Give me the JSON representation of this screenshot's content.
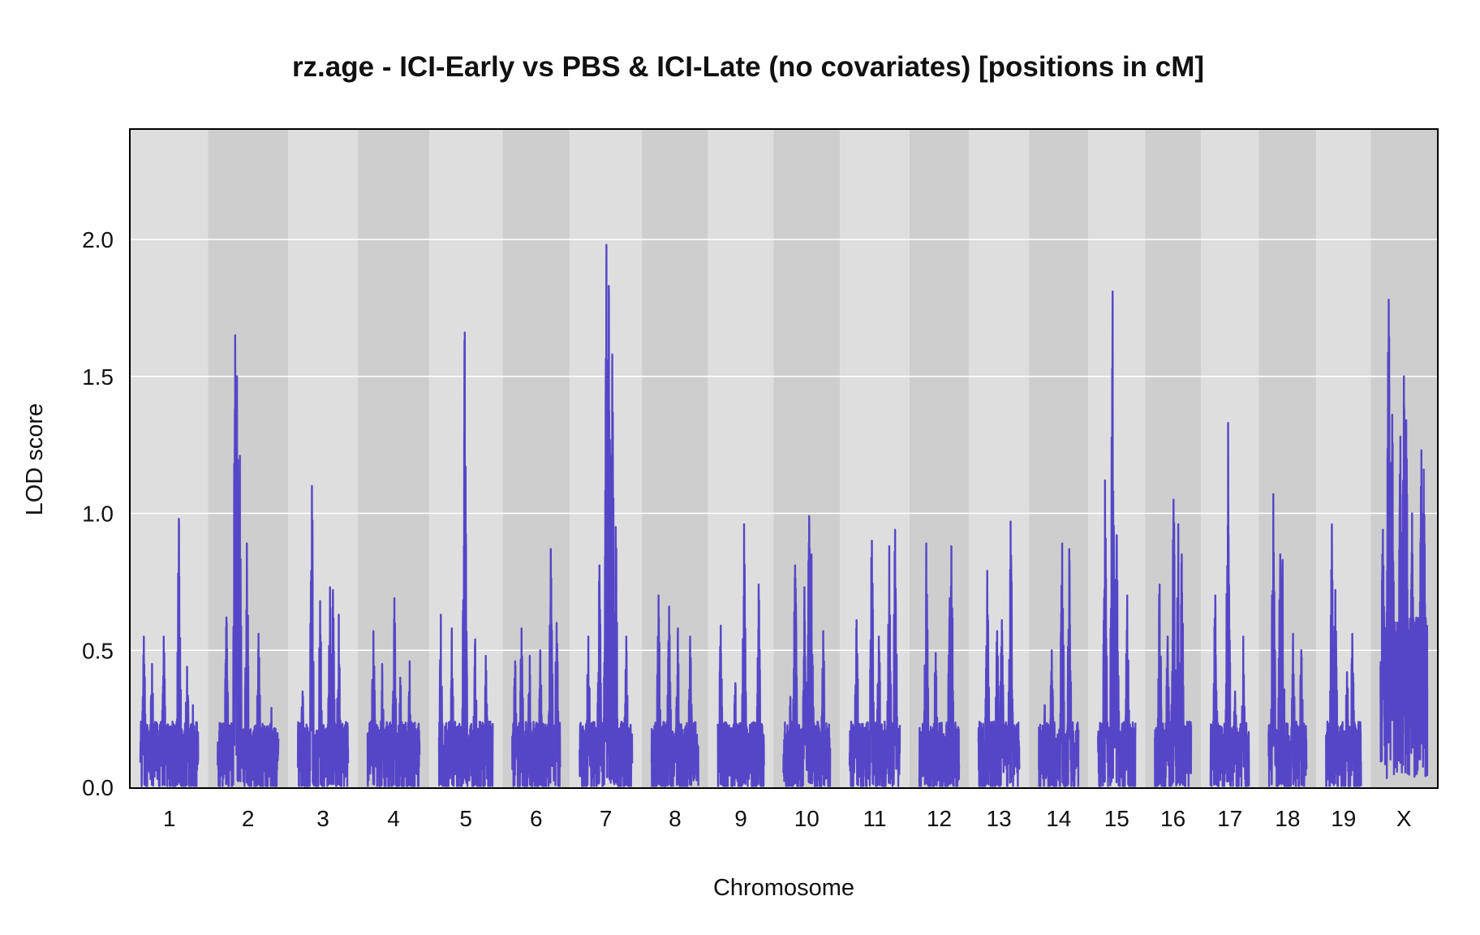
{
  "chart_data": {
    "type": "line",
    "title": "rz.age - ICI-Early vs PBS & ICI-Late (no covariates) [positions in cM]",
    "xlabel": "Chromosome",
    "ylabel": "LOD score",
    "ylim": [
      0,
      2.4
    ],
    "yticks": [
      "0.0",
      "0.5",
      "1.0",
      "1.5",
      "2.0"
    ],
    "ytick_values": [
      0,
      0.5,
      1.0,
      1.5,
      2.0
    ],
    "grid": "horizontal",
    "line_color": "#5546c7",
    "band_colors": [
      "#dedede",
      "#cecece"
    ],
    "chromosomes": [
      {
        "name": "1",
        "len": 99,
        "peaks": [
          [
            6,
            0.55
          ],
          [
            20,
            0.45
          ],
          [
            40,
            0.55
          ],
          [
            66,
            0.98
          ],
          [
            80,
            0.44
          ],
          [
            90,
            0.3
          ]
        ]
      },
      {
        "name": "2",
        "len": 104,
        "peaks": [
          [
            15,
            0.62
          ],
          [
            30,
            1.65
          ],
          [
            33,
            1.5
          ],
          [
            38,
            1.21
          ],
          [
            50,
            0.89
          ],
          [
            70,
            0.56
          ],
          [
            92,
            0.29
          ]
        ]
      },
      {
        "name": "3",
        "len": 86,
        "peaks": [
          [
            8,
            0.35
          ],
          [
            24,
            1.1
          ],
          [
            38,
            0.68
          ],
          [
            55,
            0.73
          ],
          [
            60,
            0.72
          ],
          [
            70,
            0.63
          ]
        ]
      },
      {
        "name": "4",
        "len": 89,
        "peaks": [
          [
            10,
            0.57
          ],
          [
            25,
            0.45
          ],
          [
            46,
            0.69
          ],
          [
            56,
            0.4
          ],
          [
            72,
            0.46
          ],
          [
            84,
            0.2
          ]
        ]
      },
      {
        "name": "5",
        "len": 92,
        "peaks": [
          [
            3,
            0.63
          ],
          [
            22,
            0.58
          ],
          [
            44,
            1.66
          ],
          [
            62,
            0.54
          ],
          [
            80,
            0.48
          ]
        ]
      },
      {
        "name": "6",
        "len": 82,
        "peaks": [
          [
            5,
            0.46
          ],
          [
            16,
            0.58
          ],
          [
            30,
            0.48
          ],
          [
            48,
            0.5
          ],
          [
            66,
            0.87
          ],
          [
            76,
            0.6
          ]
        ]
      },
      {
        "name": "7",
        "len": 90,
        "peaks": [
          [
            15,
            0.55
          ],
          [
            34,
            0.81
          ],
          [
            46,
            1.98
          ],
          [
            50,
            1.83
          ],
          [
            56,
            1.58
          ],
          [
            62,
            0.95
          ],
          [
            80,
            0.55
          ]
        ]
      },
      {
        "name": "8",
        "len": 80,
        "peaks": [
          [
            12,
            0.7
          ],
          [
            30,
            0.66
          ],
          [
            45,
            0.58
          ],
          [
            66,
            0.55
          ]
        ]
      },
      {
        "name": "9",
        "len": 79,
        "peaks": [
          [
            5,
            0.59
          ],
          [
            30,
            0.38
          ],
          [
            45,
            0.96
          ],
          [
            70,
            0.74
          ]
        ]
      },
      {
        "name": "10",
        "len": 80,
        "peaks": [
          [
            12,
            0.33
          ],
          [
            20,
            0.81
          ],
          [
            36,
            0.73
          ],
          [
            44,
            0.99
          ],
          [
            48,
            0.85
          ],
          [
            68,
            0.57
          ]
        ]
      },
      {
        "name": "11",
        "len": 86,
        "peaks": [
          [
            12,
            0.61
          ],
          [
            38,
            0.9
          ],
          [
            50,
            0.55
          ],
          [
            68,
            0.88
          ],
          [
            78,
            0.94
          ]
        ]
      },
      {
        "name": "12",
        "len": 68,
        "peaks": [
          [
            12,
            0.89
          ],
          [
            28,
            0.49
          ],
          [
            52,
            0.69
          ],
          [
            55,
            0.88
          ]
        ]
      },
      {
        "name": "13",
        "len": 70,
        "peaks": [
          [
            15,
            0.79
          ],
          [
            32,
            0.57
          ],
          [
            40,
            0.61
          ],
          [
            55,
            0.97
          ]
        ]
      },
      {
        "name": "14",
        "len": 68,
        "peaks": [
          [
            10,
            0.3
          ],
          [
            22,
            0.5
          ],
          [
            40,
            0.89
          ],
          [
            52,
            0.87
          ]
        ]
      },
      {
        "name": "15",
        "len": 64,
        "peaks": [
          [
            12,
            1.12
          ],
          [
            25,
            1.81
          ],
          [
            32,
            0.92
          ],
          [
            50,
            0.7
          ]
        ]
      },
      {
        "name": "16",
        "len": 62,
        "peaks": [
          [
            8,
            0.74
          ],
          [
            22,
            0.55
          ],
          [
            32,
            1.05
          ],
          [
            40,
            0.96
          ],
          [
            46,
            0.85
          ]
        ]
      },
      {
        "name": "17",
        "len": 66,
        "peaks": [
          [
            8,
            0.7
          ],
          [
            30,
            1.33
          ],
          [
            42,
            0.35
          ],
          [
            56,
            0.55
          ]
        ]
      },
      {
        "name": "18",
        "len": 65,
        "peaks": [
          [
            8,
            1.07
          ],
          [
            20,
            0.85
          ],
          [
            24,
            0.83
          ],
          [
            42,
            0.56
          ],
          [
            56,
            0.5
          ]
        ]
      },
      {
        "name": "19",
        "len": 60,
        "peaks": [
          [
            10,
            0.96
          ],
          [
            16,
            0.72
          ],
          [
            36,
            0.42
          ],
          [
            45,
            0.56
          ]
        ]
      },
      {
        "name": "X",
        "len": 80,
        "peaks": [
          [
            4,
            0.94
          ],
          [
            14,
            1.78
          ],
          [
            20,
            1.36
          ],
          [
            34,
            1.28
          ],
          [
            40,
            1.5
          ],
          [
            44,
            1.34
          ],
          [
            54,
            1.0
          ],
          [
            70,
            1.23
          ],
          [
            74,
            1.16
          ]
        ]
      }
    ]
  }
}
